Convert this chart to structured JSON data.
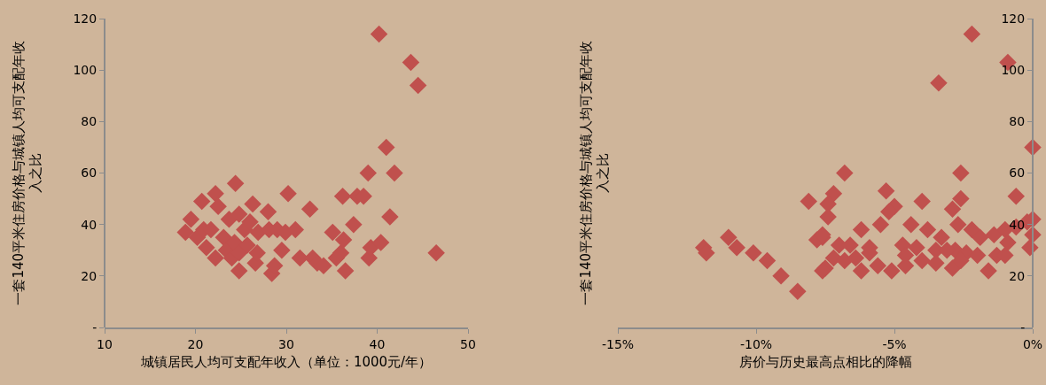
{
  "chart_data": [
    {
      "type": "scatter",
      "xlabel": "城镇居民人均可支配年收入（单位：1000元/年）",
      "ylabel": "一套140平米住房价格与城镇人均可支配年收入之比",
      "marker": "diamond",
      "color": "#c0504d",
      "x": [
        18.9,
        19.5,
        20.2,
        20.7,
        20.9,
        21.2,
        21.7,
        22.2,
        22.2,
        22.5,
        23.1,
        23.4,
        23.7,
        24.0,
        24.4,
        24.3,
        24.8,
        24.8,
        24.8,
        25.4,
        25.7,
        26.0,
        26.3,
        26.6,
        26.8,
        26.9,
        28.0,
        28.1,
        28.4,
        28.7,
        29.0,
        29.5,
        29.9,
        30.2,
        31.0,
        31.5,
        32.6,
        32.9,
        33.4,
        34.1,
        35.1,
        35.5,
        36.0,
        36.2,
        36.3,
        36.5,
        37.4,
        37.8,
        38.5,
        39.0,
        39.1,
        39.3,
        40.2,
        40.4,
        41.0,
        41.9,
        41.4,
        43.7,
        44.5,
        46.5
      ],
      "values": [
        37,
        42,
        35,
        49,
        38,
        31,
        38,
        52,
        27,
        47,
        35,
        30,
        42,
        27,
        56,
        33,
        44,
        29,
        22,
        38,
        32,
        41,
        48,
        25,
        29,
        37,
        45,
        38,
        21,
        24,
        38,
        30,
        37,
        52,
        38,
        27,
        46,
        27,
        25,
        24,
        37,
        27,
        29,
        51,
        34,
        22,
        40,
        51,
        51,
        60,
        27,
        31,
        114,
        33,
        70,
        60,
        43,
        103,
        94,
        29
      ],
      "xlim": [
        10,
        50
      ],
      "xticks": [
        10,
        20,
        30,
        40,
        50
      ],
      "ylim": [
        0,
        120
      ],
      "yticks": [
        {
          "value": 0,
          "label": "-"
        },
        20,
        40,
        60,
        80,
        100,
        120
      ]
    },
    {
      "type": "scatter",
      "xlabel": "房价与历史最高点相比的降幅",
      "ylabel": "一套140平米住房价格与城镇人均可支配年收入之比",
      "marker": "diamond",
      "color": "#c0504d",
      "x": [
        -2.2,
        -0.9,
        -3.4,
        0,
        -6.8,
        -2.6,
        -0.6,
        -7.2,
        -5.3,
        -4.0,
        -2.6,
        -7.4,
        -5.0,
        -2.9,
        -7.4,
        -5.2,
        -6.2,
        -5.5,
        -4.4,
        -3.8,
        -2.7,
        -3.3,
        -2.2,
        -1.9,
        -1.4,
        -1.0,
        -0.6,
        -0.2,
        0,
        0,
        -0.1,
        -7.6,
        -7.0,
        -6.6,
        -5.9,
        -4.7,
        -4.2,
        -3.5,
        -2.8,
        -2.4,
        -0.9,
        -7.2,
        -6.8,
        -6.4,
        -5.9,
        -5.6,
        -7.5,
        -6.2,
        -5.1,
        -4.6,
        -4.6,
        -4.0,
        -3.5,
        -2.9,
        -2.6,
        -2.0,
        -1.6,
        -1.3,
        -1.0,
        -3.1,
        -11.9,
        -11.8,
        -11.0,
        -10.7,
        -10.1,
        -9.6,
        -9.1,
        -8.5,
        -8.1,
        -7.8,
        -7.6,
        -7.6
      ],
      "values": [
        114,
        103,
        95,
        70,
        60,
        60,
        51,
        52,
        53,
        49,
        50,
        48,
        47,
        46,
        43,
        45,
        38,
        40,
        40,
        38,
        40,
        35,
        38,
        35,
        36,
        38,
        39,
        41,
        42,
        36,
        31,
        35,
        32,
        32,
        31,
        32,
        31,
        30,
        30,
        29,
        33,
        27,
        26,
        27,
        29,
        24,
        23,
        22,
        22,
        28,
        24,
        26,
        25,
        23,
        26,
        28,
        22,
        28,
        28,
        30,
        31,
        29,
        35,
        31,
        29,
        26,
        20,
        14,
        49,
        34,
        36,
        22
      ],
      "xlim": [
        -15,
        0
      ],
      "xticks": [
        {
          "value": -15,
          "label": "-15%"
        },
        {
          "value": -10,
          "label": "-10%"
        },
        {
          "value": -5,
          "label": "-5%"
        },
        {
          "value": 0,
          "label": "0%"
        }
      ],
      "ylim": [
        0,
        120
      ],
      "yticks": [
        {
          "value": 0,
          "label": "-"
        },
        20,
        40,
        60,
        80,
        100,
        120
      ]
    }
  ]
}
